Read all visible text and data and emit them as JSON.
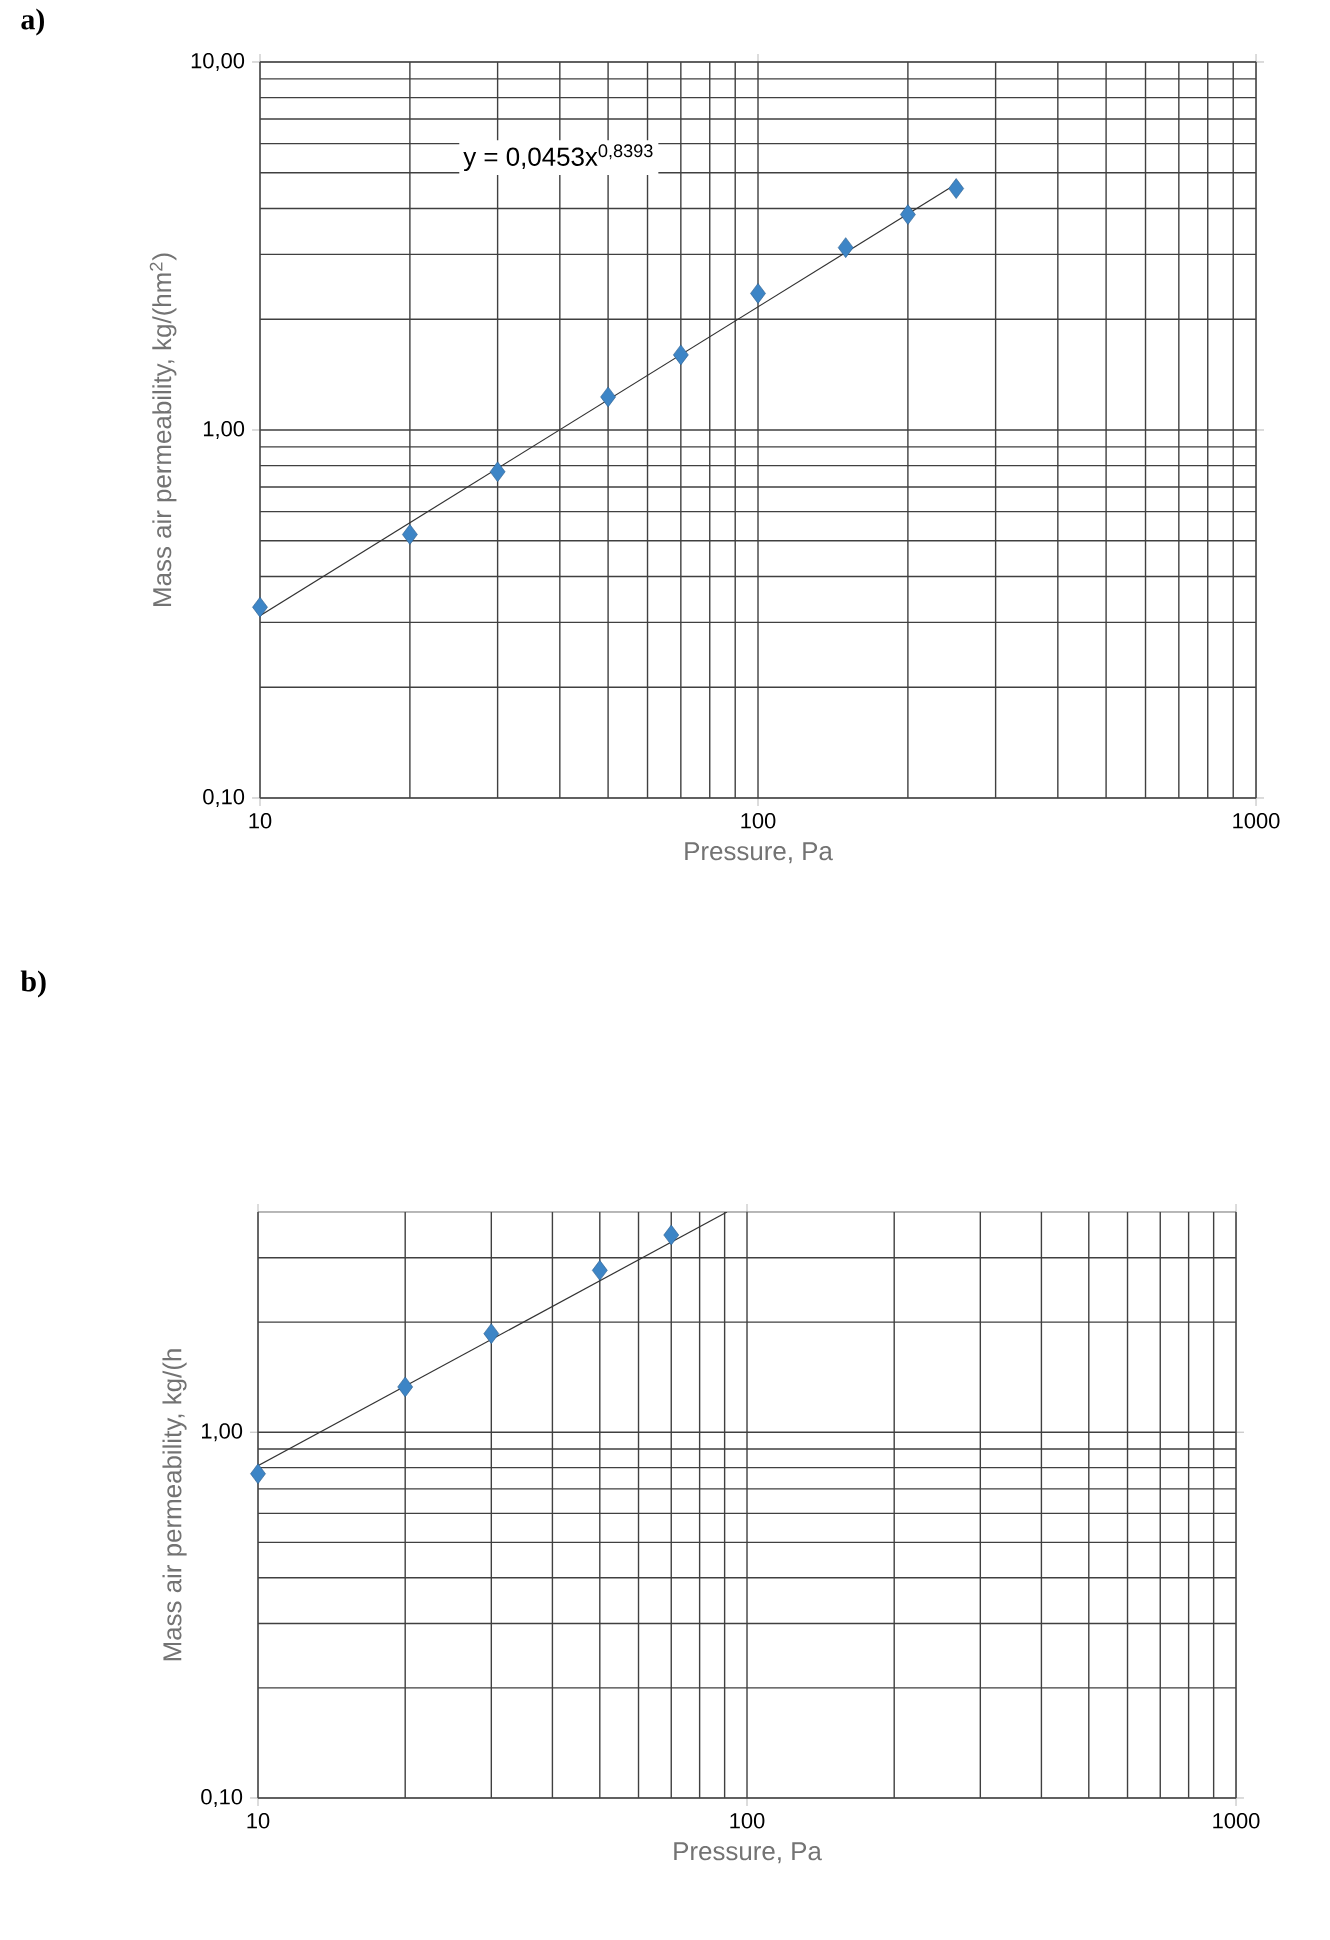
{
  "chart_data": [
    {
      "type": "scatter",
      "title": "a)",
      "xlabel": "Pressure, Pa",
      "ylabel": "Mass air permeability, kg/(hm$^{2}$)",
      "log": "xy",
      "grid": true,
      "xlim": [
        10,
        1000
      ],
      "ylim": [
        0.1,
        10
      ],
      "xticks": [
        10,
        100,
        1000
      ],
      "yticks": [
        {
          "value": 0.1,
          "label": "0,10"
        },
        {
          "value": 1,
          "label": "1,00"
        },
        {
          "value": 10,
          "label": "10,00"
        }
      ],
      "annotations": [
        "y = 0,0453x$^{0,8393}$"
      ],
      "series": [
        {
          "type": "scatter",
          "marker": "diamond",
          "color": "#3d85c6",
          "x": [
            10,
            20,
            30,
            50,
            70,
            100,
            150,
            200,
            250
          ],
          "values": [
            0.33,
            0.52,
            0.77,
            1.23,
            1.6,
            2.35,
            3.13,
            3.85,
            4.53
          ]
        },
        {
          "type": "line",
          "marker": "none",
          "line_style": "solid",
          "color": "#333333",
          "x": [
            10,
            250
          ],
          "values": [
            0.313,
            4.66
          ]
        }
      ]
    },
    {
      "type": "scatter",
      "title": "b)",
      "xlabel": "Pressure, Pa",
      "ylabel": "Mass air permeability, kg/(h",
      "log": "xy",
      "grid": true,
      "xlim": [
        10,
        1000
      ],
      "ylim": [
        0.1,
        4
      ],
      "xticks": [
        10,
        100,
        1000
      ],
      "yticks": [
        {
          "value": 0.1,
          "label": "0,10"
        },
        {
          "value": 1,
          "label": "1,00"
        }
      ],
      "series": [
        {
          "type": "scatter",
          "marker": "diamond",
          "color": "#3d85c6",
          "x": [
            10,
            20,
            30,
            50,
            70
          ],
          "values": [
            0.77,
            1.33,
            1.86,
            2.77,
            3.46
          ]
        },
        {
          "type": "line",
          "marker": "none",
          "line_style": "solid",
          "color": "#333333",
          "x": [
            10,
            91
          ],
          "values": [
            0.81,
            4.0
          ]
        }
      ]
    }
  ]
}
